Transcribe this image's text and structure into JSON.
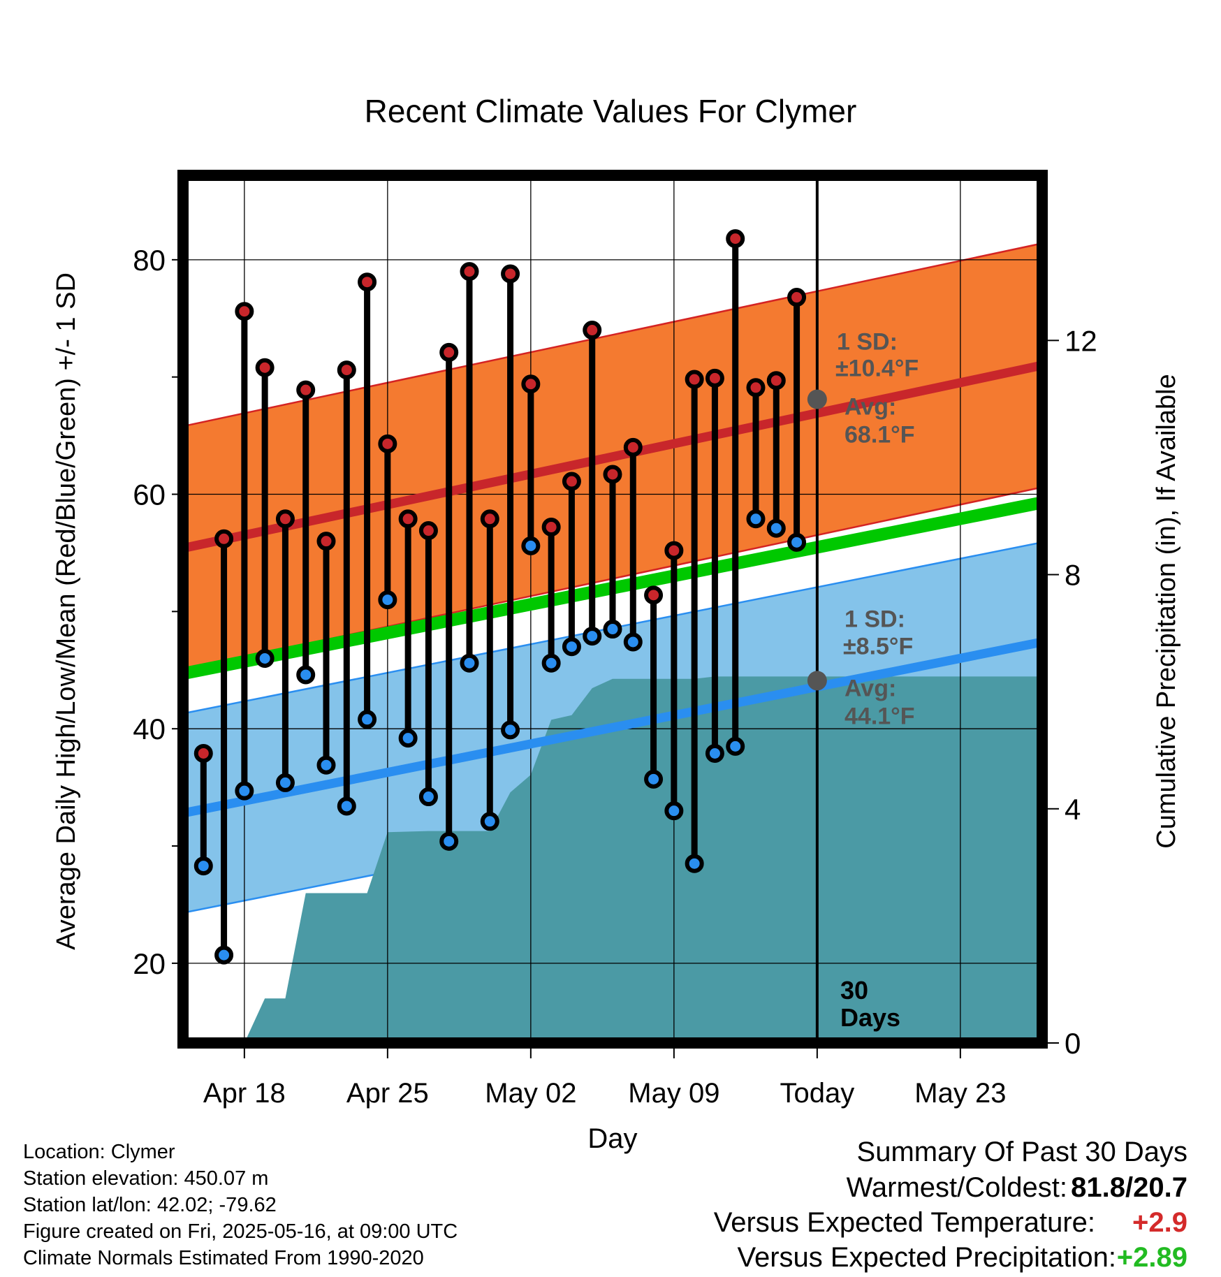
{
  "chart_data": {
    "type": "line",
    "title": "Recent Climate Values For Clymer",
    "xlabel": "Day",
    "ylabel": "Average Daily High/Low/Mean (Red/Blue/Green) +/- 1 SD",
    "y2label": "Cumulative Precipitation (in), If Available",
    "ylim": [
      13.2,
      87.2
    ],
    "y2lim": [
      0,
      14.82
    ],
    "y_ticks": [
      20,
      40,
      60,
      80
    ],
    "y2_ticks": [
      0,
      4,
      8,
      12
    ],
    "x_start": "2025-04-15",
    "x_end": "2025-05-27",
    "x_ticks": [
      {
        "date": "2025-04-18",
        "label": "Apr 18"
      },
      {
        "date": "2025-04-25",
        "label": "Apr 25"
      },
      {
        "date": "2025-05-02",
        "label": "May 02"
      },
      {
        "date": "2025-05-09",
        "label": "May 09"
      },
      {
        "date": "2025-05-16",
        "label": "Today"
      },
      {
        "date": "2025-05-23",
        "label": "May 23"
      }
    ],
    "grid": true,
    "daily_dates": [
      "2025-04-16",
      "2025-04-17",
      "2025-04-18",
      "2025-04-19",
      "2025-04-20",
      "2025-04-21",
      "2025-04-22",
      "2025-04-23",
      "2025-04-24",
      "2025-04-25",
      "2025-04-26",
      "2025-04-27",
      "2025-04-28",
      "2025-04-29",
      "2025-04-30",
      "2025-05-01",
      "2025-05-02",
      "2025-05-03",
      "2025-05-04",
      "2025-05-05",
      "2025-05-06",
      "2025-05-07",
      "2025-05-08",
      "2025-05-09",
      "2025-05-10",
      "2025-05-11",
      "2025-05-12",
      "2025-05-13",
      "2025-05-14",
      "2025-05-15"
    ],
    "series": [
      {
        "name": "High",
        "color": "#c8262b",
        "values": [
          37.9,
          56.2,
          75.6,
          70.8,
          57.9,
          68.9,
          56.0,
          70.6,
          78.1,
          64.3,
          57.9,
          56.9,
          72.1,
          79.0,
          57.9,
          78.8,
          69.4,
          57.2,
          61.1,
          74.0,
          61.7,
          64.0,
          51.4,
          55.2,
          69.8,
          69.9,
          81.8,
          69.1,
          69.7,
          76.8
        ]
      },
      {
        "name": "Low",
        "color": "#2a8ef0",
        "values": [
          28.3,
          20.7,
          34.7,
          46.0,
          35.4,
          44.6,
          36.9,
          33.4,
          40.8,
          51.0,
          39.2,
          34.2,
          30.4,
          45.6,
          32.1,
          39.9,
          55.6,
          45.6,
          47.0,
          47.9,
          48.5,
          47.4,
          35.7,
          33.0,
          28.5,
          37.9,
          38.5,
          57.9,
          57.1,
          55.9
        ]
      }
    ],
    "normals": {
      "high": {
        "name": "Normal High",
        "color": "#c8262b",
        "start": 55.4,
        "end": 71.0,
        "today": 68.1,
        "sd": 10.4
      },
      "mean": {
        "name": "Normal Mean",
        "color": "#00c800",
        "start": 44.7,
        "end": 59.3
      },
      "low": {
        "name": "Normal Low",
        "color": "#2a8ef0",
        "start": 32.8,
        "end": 47.4,
        "today": 44.1,
        "sd": 8.5
      }
    },
    "precip": {
      "name": "Cumulative Precipitation",
      "color": "#4b9aa5",
      "points": [
        {
          "date": "2025-04-18",
          "value": 0.0
        },
        {
          "date": "2025-04-19",
          "value": 0.76
        },
        {
          "date": "2025-04-20",
          "value": 0.76
        },
        {
          "date": "2025-04-21",
          "value": 2.56
        },
        {
          "date": "2025-04-24",
          "value": 2.56
        },
        {
          "date": "2025-04-25",
          "value": 3.6
        },
        {
          "date": "2025-04-27",
          "value": 3.62
        },
        {
          "date": "2025-04-30",
          "value": 3.62
        },
        {
          "date": "2025-05-01",
          "value": 4.28
        },
        {
          "date": "2025-05-02",
          "value": 4.58
        },
        {
          "date": "2025-05-03",
          "value": 5.52
        },
        {
          "date": "2025-05-04",
          "value": 5.6
        },
        {
          "date": "2025-05-05",
          "value": 6.06
        },
        {
          "date": "2025-05-06",
          "value": 6.22
        },
        {
          "date": "2025-05-10",
          "value": 6.22
        },
        {
          "date": "2025-05-11",
          "value": 6.26
        },
        {
          "date": "2025-05-27",
          "value": 6.26
        }
      ]
    },
    "annotations": {
      "high_sd": "1 SD:",
      "high_sd_val": "±10.4°F",
      "high_avg": "Avg:",
      "high_avg_val": "68.1°F",
      "low_sd": "1 SD:",
      "low_sd_val": "±8.5°F",
      "low_avg": "Avg:",
      "low_avg_val": "44.1°F",
      "days_num": "30",
      "days_word": "Days"
    }
  },
  "footer": {
    "location": "Location: Clymer",
    "elevation": "Station elevation: 450.07 m",
    "latlon": "Station lat/lon: 42.02; -79.62",
    "created": "Figure created on Fri, 2025-05-16, at 09:00 UTC",
    "normals": "Climate Normals Estimated From 1990-2020"
  },
  "summary": {
    "title": "Summary Of Past 30 Days",
    "warm_cold_label": "Warmest/Coldest:",
    "warm_cold_value": "81.8/20.7",
    "temp_label": "Versus Expected Temperature:",
    "temp_value": "+2.9",
    "temp_color": "#d42a2a",
    "precip_label": "Versus Expected Precipitation:",
    "precip_value": "+2.89",
    "precip_color": "#22bb22"
  }
}
